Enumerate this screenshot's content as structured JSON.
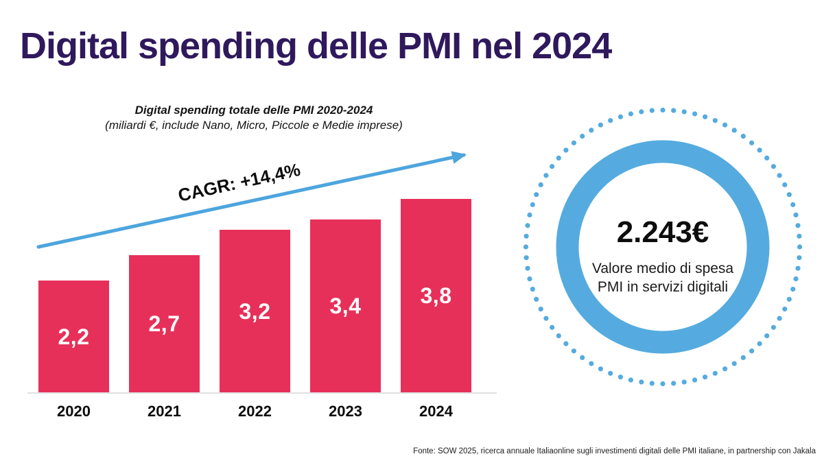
{
  "title": "Digital spending delle PMI nel 2024",
  "chart": {
    "subtitle_line1": "Digital spending totale delle PMI 2020-2024",
    "subtitle_line2": "(miliardi €, include Nano, Micro, Piccole e Medie imprese)",
    "cagr_label": "CAGR: +14,4%"
  },
  "chart_data": {
    "type": "bar",
    "categories": [
      "2020",
      "2021",
      "2022",
      "2023",
      "2024"
    ],
    "values": [
      2.2,
      2.7,
      3.2,
      3.4,
      3.8
    ],
    "value_labels": [
      "2,2",
      "2,7",
      "3,2",
      "3,4",
      "3,8"
    ],
    "title": "Digital spending totale delle PMI 2020-2024",
    "subtitle": "(miliardi €, include Nano, Micro, Piccole e Medie imprese)",
    "annotation": "CAGR: +14,4%",
    "xlabel": "",
    "ylabel": "miliardi €",
    "ylim": [
      0,
      4
    ],
    "grid": false,
    "legend": "none"
  },
  "badge": {
    "value": "2.243€",
    "caption_line1": "Valore medio di spesa",
    "caption_line2": "PMI in servizi digitali"
  },
  "footer": "Fonte: SOW 2025, ricerca annuale Italiaonline sugli investimenti digitali delle PMI italiane, in partnership con Jakala",
  "colors": {
    "title": "#2f195c",
    "bar": "#e73059",
    "accent_blue": "#55abdf",
    "arrow_blue": "#4da5de",
    "text": "#141414"
  }
}
